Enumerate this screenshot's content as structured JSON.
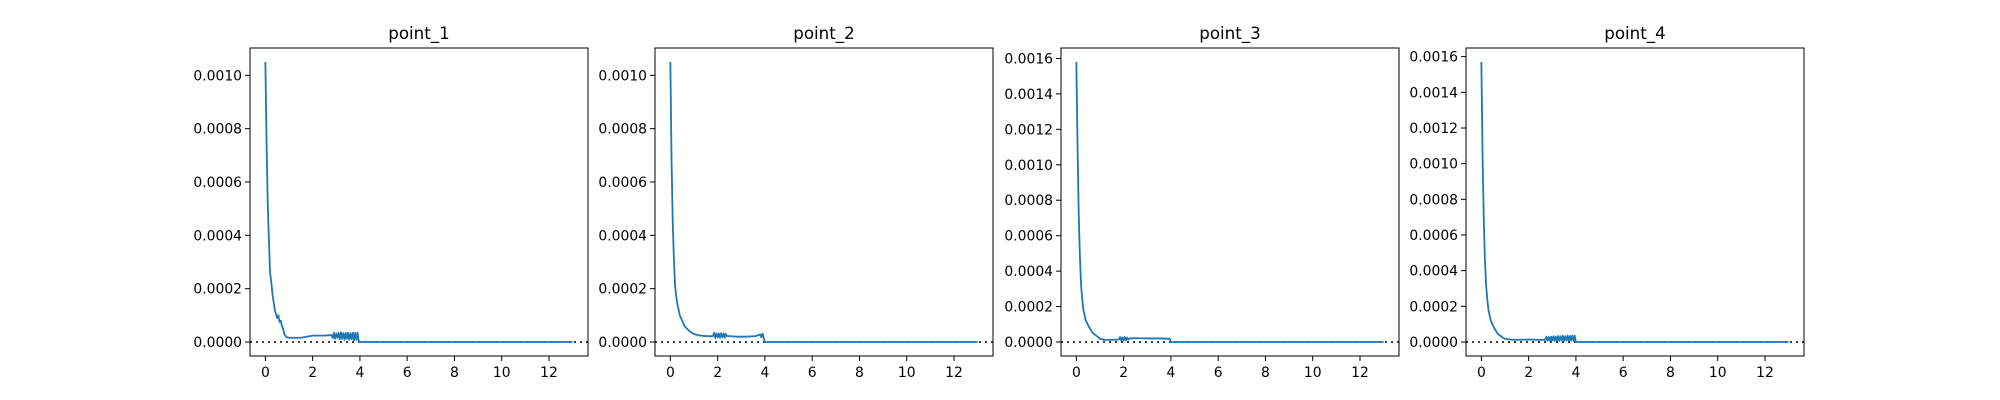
{
  "chart_data": [
    {
      "type": "line",
      "title": "point_1",
      "xlim": [
        -0.65,
        13.65
      ],
      "ylim": [
        -5.25e-05,
        0.0011025
      ],
      "xticks": [
        0,
        2,
        4,
        6,
        8,
        10,
        12
      ],
      "yticks": [
        0.0,
        0.0002,
        0.0004,
        0.0006,
        0.0008,
        0.001
      ],
      "ytick_labels": [
        "0.0000",
        "0.0002",
        "0.0004",
        "0.0006",
        "0.0008",
        "0.0010"
      ],
      "reference_line": {
        "y": 0,
        "style": "dotted",
        "color": "#000000"
      },
      "series": [
        {
          "color": "#1f77b4",
          "x": [
            0.0,
            0.05,
            0.1,
            0.15,
            0.2,
            0.25,
            0.3,
            0.35,
            0.4,
            0.45,
            0.5,
            0.55,
            0.6,
            0.65,
            0.7,
            0.75,
            0.8,
            0.9,
            1.0,
            1.5,
            2.0,
            2.5,
            2.8,
            2.85,
            2.9,
            2.95,
            3.0,
            3.05,
            3.1,
            3.15,
            3.2,
            3.25,
            3.3,
            3.35,
            3.4,
            3.45,
            3.5,
            3.55,
            3.6,
            3.65,
            3.7,
            3.75,
            3.8,
            3.85,
            3.9,
            3.95,
            4.0,
            6.0,
            8.0,
            10.0,
            12.0,
            13.0
          ],
          "values": [
            0.00105,
            0.00075,
            0.00052,
            0.00038,
            0.00026,
            0.000225,
            0.00018,
            0.00015,
            0.00012,
            0.000105,
            9e-05,
            0.0001,
            7.5e-05,
            8e-05,
            6e-05,
            5e-05,
            3e-05,
            1.8e-05,
            1.6e-05,
            1.6e-05,
            2.4e-05,
            2.4e-05,
            2.6e-05,
            1.5e-05,
            3.5e-05,
            1.2e-05,
            3.2e-05,
            1.6e-05,
            3.4e-05,
            1e-05,
            3.6e-05,
            1.2e-05,
            3.3e-05,
            8e-06,
            3.4e-05,
            1.2e-05,
            3.5e-05,
            8e-06,
            3.3e-05,
            1e-05,
            3.5e-05,
            6e-06,
            3.4e-05,
            8e-06,
            3.5e-05,
            3e-06,
            0.0,
            0.0,
            0.0,
            0.0,
            0.0,
            0.0
          ]
        }
      ]
    },
    {
      "type": "line",
      "title": "point_2",
      "xlim": [
        -0.65,
        13.65
      ],
      "ylim": [
        -5.25e-05,
        0.0011025
      ],
      "xticks": [
        0,
        2,
        4,
        6,
        8,
        10,
        12
      ],
      "yticks": [
        0.0,
        0.0002,
        0.0004,
        0.0006,
        0.0008,
        0.001
      ],
      "ytick_labels": [
        "0.0000",
        "0.0002",
        "0.0004",
        "0.0006",
        "0.0008",
        "0.0010"
      ],
      "reference_line": {
        "y": 0,
        "style": "dotted",
        "color": "#000000"
      },
      "series": [
        {
          "color": "#1f77b4",
          "x": [
            0.0,
            0.05,
            0.1,
            0.15,
            0.2,
            0.25,
            0.3,
            0.35,
            0.4,
            0.5,
            0.6,
            0.7,
            0.8,
            0.9,
            1.0,
            1.2,
            1.5,
            1.8,
            1.85,
            1.9,
            1.95,
            2.0,
            2.05,
            2.1,
            2.15,
            2.2,
            2.25,
            2.3,
            2.35,
            2.4,
            2.5,
            2.8,
            3.2,
            3.6,
            3.8,
            3.85,
            3.9,
            3.95,
            4.0,
            6.0,
            8.0,
            10.0,
            12.0,
            13.0
          ],
          "values": [
            0.00105,
            0.00068,
            0.00045,
            0.00031,
            0.00021,
            0.00017,
            0.00014,
            0.00012,
            0.0001,
            8e-05,
            6e-05,
            5e-05,
            4.2e-05,
            3.5e-05,
            3e-05,
            2.5e-05,
            2.2e-05,
            2.2e-05,
            3.5e-05,
            1.5e-05,
            3.2e-05,
            1.8e-05,
            3.2e-05,
            1.6e-05,
            3.3e-05,
            1.8e-05,
            3.2e-05,
            1.6e-05,
            3e-05,
            2.2e-05,
            2.2e-05,
            2e-05,
            2e-05,
            2.2e-05,
            2.8e-05,
            1.8e-05,
            3.2e-05,
            1.5e-05,
            0.0,
            0.0,
            0.0,
            0.0,
            0.0,
            0.0
          ]
        }
      ]
    },
    {
      "type": "line",
      "title": "point_3",
      "xlim": [
        -0.65,
        13.65
      ],
      "ylim": [
        -7.9e-05,
        0.001659
      ],
      "xticks": [
        0,
        2,
        4,
        6,
        8,
        10,
        12
      ],
      "yticks": [
        0.0,
        0.0002,
        0.0004,
        0.0006,
        0.0008,
        0.001,
        0.0012,
        0.0014,
        0.0016
      ],
      "ytick_labels": [
        "0.0000",
        "0.0002",
        "0.0004",
        "0.0006",
        "0.0008",
        "0.0010",
        "0.0012",
        "0.0014",
        "0.0016"
      ],
      "reference_line": {
        "y": 0,
        "style": "dotted",
        "color": "#000000"
      },
      "series": [
        {
          "color": "#1f77b4",
          "x": [
            0.0,
            0.05,
            0.1,
            0.15,
            0.2,
            0.25,
            0.3,
            0.35,
            0.4,
            0.5,
            0.6,
            0.7,
            0.8,
            0.9,
            1.0,
            1.2,
            1.5,
            1.8,
            1.85,
            1.9,
            1.95,
            2.0,
            2.05,
            2.1,
            2.15,
            2.2,
            2.25,
            2.5,
            3.0,
            3.5,
            3.95,
            4.0,
            6.0,
            8.0,
            10.0,
            12.0,
            13.0
          ],
          "values": [
            0.00158,
            0.0011,
            0.00072,
            0.00048,
            0.00032,
            0.00024,
            0.00018,
            0.00015,
            0.00012,
            9.5e-05,
            7e-05,
            5e-05,
            4e-05,
            3e-05,
            1.8e-05,
            1.2e-05,
            1.2e-05,
            1.4e-05,
            2.8e-05,
            8e-06,
            2.6e-05,
            1e-05,
            2.8e-05,
            8e-06,
            2.5e-05,
            1.4e-05,
            2e-05,
            2.2e-05,
            2e-05,
            2e-05,
            1.8e-05,
            0.0,
            0.0,
            0.0,
            0.0,
            0.0,
            0.0
          ]
        }
      ]
    },
    {
      "type": "line",
      "title": "point_4",
      "xlim": [
        -0.65,
        13.65
      ],
      "ylim": [
        -7.85e-05,
        0.0016485
      ],
      "xticks": [
        0,
        2,
        4,
        6,
        8,
        10,
        12
      ],
      "yticks": [
        0.0,
        0.0002,
        0.0004,
        0.0006,
        0.0008,
        0.001,
        0.0012,
        0.0014,
        0.0016
      ],
      "ytick_labels": [
        "0.0000",
        "0.0002",
        "0.0004",
        "0.0006",
        "0.0008",
        "0.0010",
        "0.0012",
        "0.0014",
        "0.0016"
      ],
      "reference_line": {
        "y": 0,
        "style": "dotted",
        "color": "#000000"
      },
      "series": [
        {
          "color": "#1f77b4",
          "x": [
            0.0,
            0.05,
            0.1,
            0.15,
            0.2,
            0.25,
            0.3,
            0.35,
            0.4,
            0.5,
            0.6,
            0.7,
            0.8,
            0.9,
            1.0,
            1.2,
            1.5,
            2.0,
            2.5,
            2.7,
            2.75,
            2.8,
            2.85,
            2.9,
            2.95,
            3.0,
            3.05,
            3.1,
            3.15,
            3.2,
            3.25,
            3.3,
            3.35,
            3.4,
            3.45,
            3.5,
            3.55,
            3.6,
            3.65,
            3.7,
            3.75,
            3.8,
            3.85,
            3.9,
            3.95,
            4.0,
            6.0,
            8.0,
            10.0,
            12.0,
            13.0
          ],
          "values": [
            0.00157,
            0.00105,
            0.0007,
            0.00046,
            0.00032,
            0.00024,
            0.00018,
            0.00015,
            0.00012,
            9e-05,
            6.5e-05,
            4.5e-05,
            3.5e-05,
            2.5e-05,
            1.8e-05,
            1.4e-05,
            1.2e-05,
            1.4e-05,
            1.2e-05,
            1.2e-05,
            3e-05,
            8e-06,
            2.8e-05,
            6e-06,
            3e-05,
            8e-06,
            3.2e-05,
            6e-06,
            3e-05,
            8e-06,
            3.4e-05,
            6e-06,
            3.2e-05,
            8e-06,
            3.5e-05,
            6e-06,
            3.2e-05,
            8e-06,
            3.5e-05,
            6e-06,
            3.4e-05,
            8e-06,
            3.6e-05,
            6e-06,
            3.5e-05,
            0.0,
            0.0,
            0.0,
            0.0,
            0.0,
            0.0
          ]
        }
      ]
    }
  ]
}
